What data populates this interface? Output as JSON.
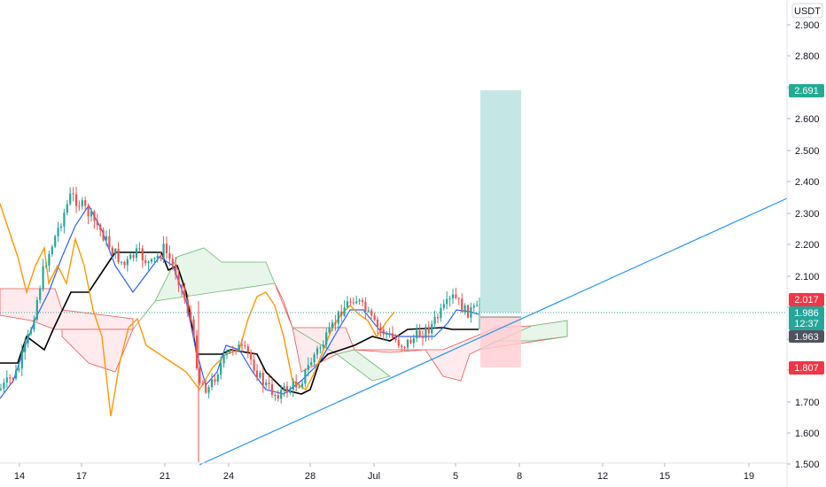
{
  "currency": "USDT",
  "price_axis": {
    "ticks": [
      "2.900",
      "2.800",
      "2.700",
      "2.600",
      "2.500",
      "2.400",
      "2.300",
      "2.200",
      "2.100",
      "2.000",
      "1.900",
      "1.800",
      "1.700",
      "1.600",
      "1.500"
    ]
  },
  "time_axis": {
    "ticks": [
      "14",
      "17",
      "21",
      "24",
      "28",
      "Jul",
      "5",
      "8",
      "12",
      "15",
      "19"
    ]
  },
  "price_tags": {
    "target": {
      "label": "2.691",
      "color": "#22ab94"
    },
    "entry": {
      "label": "2.017",
      "color": "#f23645"
    },
    "last": {
      "label": "1.986",
      "countdown": "12:37",
      "color": "#26a69a"
    },
    "base": {
      "label": "1.963",
      "color": "#50535e"
    },
    "stop": {
      "label": "1.807",
      "color": "#f23645"
    }
  },
  "colors": {
    "up": "#26a69a",
    "down": "#ef5350",
    "tenkan": "#2962ff",
    "kijun": "#000000",
    "chikou": "#ff9800",
    "trendline": "#2196f3",
    "cloud_bull": "#e8f5e9",
    "cloud_bear": "#ffebee",
    "profit_zone": "#b2dfdb",
    "loss_zone": "#ffcdd2"
  },
  "chart_data": {
    "type": "candlestick",
    "y_range": [
      1.5,
      2.95
    ],
    "x_range": [
      0,
      1
    ],
    "position": {
      "entry": 2.017,
      "target": 2.691,
      "stop": 1.807
    },
    "last_price": 1.986
  }
}
